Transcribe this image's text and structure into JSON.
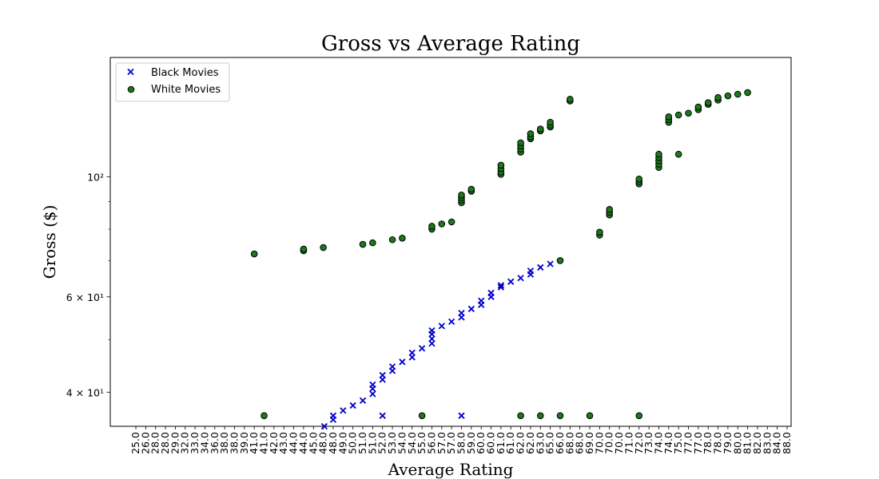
{
  "chart_data": {
    "type": "scatter",
    "title": "Gross vs Average Rating",
    "xlabel": "Average Rating",
    "ylabel": "Gross ($)",
    "yscale": "log",
    "ylim": [
      34.6,
      166
    ],
    "grid": false,
    "legend_position": "top-left",
    "x_tick_labels": [
      "25.0",
      "26.0",
      "28.0",
      "28.0",
      "29.0",
      "32.0",
      "33.0",
      "34.0",
      "36.0",
      "38.0",
      "38.0",
      "39.0",
      "41.0",
      "41.0",
      "42.0",
      "43.0",
      "44.0",
      "44.0",
      "45.0",
      "48.0",
      "48.0",
      "49.0",
      "50.0",
      "51.0",
      "51.0",
      "52.0",
      "53.0",
      "54.0",
      "54.0",
      "55.0",
      "56.0",
      "57.0",
      "57.0",
      "58.0",
      "59.0",
      "60.0",
      "60.0",
      "61.0",
      "61.0",
      "62.0",
      "62.0",
      "63.0",
      "65.0",
      "66.0",
      "68.0",
      "68.0",
      "69.0",
      "70.0",
      "70.0",
      "70.0",
      "71.0",
      "72.0",
      "73.0",
      "74.0",
      "74.0",
      "75.0",
      "77.0",
      "77.0",
      "78.0",
      "78.0",
      "79.0",
      "80.0",
      "81.0",
      "82.0",
      "83.0",
      "84.0",
      "88.0"
    ],
    "y_ticks": [
      {
        "value": 40,
        "label": "4 × 10¹"
      },
      {
        "value": 60,
        "label": "6 × 10¹"
      },
      {
        "value": 100,
        "label": "10²"
      }
    ],
    "y_minor_ticks": [
      50,
      70,
      80,
      90
    ],
    "series": [
      {
        "name": "Black Movies",
        "marker": "x",
        "color": "#0000cc",
        "points": [
          [
            19.1,
            34.6
          ],
          [
            20.0,
            36.2
          ],
          [
            20.0,
            35.6
          ],
          [
            21.0,
            37.0
          ],
          [
            22.0,
            37.8
          ],
          [
            23.0,
            38.6
          ],
          [
            24.0,
            39.7
          ],
          [
            24.0,
            40.6
          ],
          [
            24.0,
            41.3
          ],
          [
            25.0,
            42.2
          ],
          [
            25.0,
            43.0
          ],
          [
            26.0,
            43.8
          ],
          [
            26.0,
            44.6
          ],
          [
            27.0,
            45.5
          ],
          [
            28.0,
            46.4
          ],
          [
            28.0,
            47.3
          ],
          [
            29.0,
            48.2
          ],
          [
            30.0,
            49.2
          ],
          [
            30.0,
            50.2
          ],
          [
            30.0,
            51.2
          ],
          [
            30.0,
            52.0
          ],
          [
            31.0,
            53.0
          ],
          [
            32.0,
            54.0
          ],
          [
            33.0,
            55.0
          ],
          [
            33.0,
            56.0
          ],
          [
            34.0,
            57.0
          ],
          [
            35.0,
            58.0
          ],
          [
            35.0,
            59.0
          ],
          [
            36.0,
            60.0
          ],
          [
            36.0,
            61.0
          ],
          [
            37.0,
            62.5
          ],
          [
            37.0,
            63.0
          ],
          [
            38.0,
            64.0
          ],
          [
            39.0,
            65.0
          ],
          [
            40.0,
            66.0
          ],
          [
            40.0,
            67.0
          ],
          [
            41.0,
            68.0
          ],
          [
            42.0,
            69.0
          ],
          [
            25.0,
            36.2
          ],
          [
            33.0,
            36.2
          ]
        ]
      },
      {
        "name": "White Movies",
        "marker": "o",
        "color": "#1a7a1a",
        "points": [
          [
            12.0,
            72.0
          ],
          [
            13.0,
            36.2
          ],
          [
            17.0,
            73.0
          ],
          [
            17.0,
            73.5
          ],
          [
            19.0,
            74.0
          ],
          [
            23.0,
            75.0
          ],
          [
            24.0,
            75.5
          ],
          [
            26.0,
            76.5
          ],
          [
            27.0,
            77.0
          ],
          [
            30.0,
            80.0
          ],
          [
            30.0,
            81.0
          ],
          [
            31.0,
            81.8
          ],
          [
            32.0,
            82.5
          ],
          [
            29.0,
            36.2
          ],
          [
            33.0,
            89.5
          ],
          [
            33.0,
            90.5
          ],
          [
            33.0,
            91.5
          ],
          [
            33.0,
            92.5
          ],
          [
            34.0,
            94.0
          ],
          [
            34.0,
            94.8
          ],
          [
            37.0,
            101.0
          ],
          [
            37.0,
            102.0
          ],
          [
            37.0,
            103.5
          ],
          [
            37.0,
            105.0
          ],
          [
            39.0,
            111.0
          ],
          [
            39.0,
            112.5
          ],
          [
            39.0,
            114.0
          ],
          [
            39.0,
            115.5
          ],
          [
            40.0,
            117.5
          ],
          [
            40.0,
            118.5
          ],
          [
            40.0,
            120.0
          ],
          [
            41.0,
            121.5
          ],
          [
            41.0,
            122.5
          ],
          [
            42.0,
            123.5
          ],
          [
            42.0,
            124.5
          ],
          [
            42.0,
            126.0
          ],
          [
            44.0,
            138.0
          ],
          [
            44.0,
            139.0
          ],
          [
            39.0,
            36.2
          ],
          [
            41.0,
            36.2
          ],
          [
            43.0,
            36.2
          ],
          [
            43.0,
            70.0
          ],
          [
            46.0,
            36.2
          ],
          [
            47.0,
            78.0
          ],
          [
            47.0,
            79.0
          ],
          [
            48.0,
            85.0
          ],
          [
            48.0,
            86.0
          ],
          [
            48.0,
            87.0
          ],
          [
            51.0,
            97.0
          ],
          [
            51.0,
            98.0
          ],
          [
            51.0,
            99.0
          ],
          [
            53.0,
            104.0
          ],
          [
            53.0,
            105.5
          ],
          [
            53.0,
            107.0
          ],
          [
            53.0,
            108.5
          ],
          [
            53.0,
            110.0
          ],
          [
            55.0,
            110.0
          ],
          [
            51.0,
            36.2
          ],
          [
            54.0,
            126.0
          ],
          [
            54.0,
            127.5
          ],
          [
            54.0,
            129.0
          ],
          [
            55.0,
            130.0
          ],
          [
            56.0,
            131.0
          ],
          [
            57.0,
            133.0
          ],
          [
            57.0,
            134.5
          ],
          [
            58.0,
            136.0
          ],
          [
            58.0,
            137.0
          ],
          [
            59.0,
            138.5
          ],
          [
            59.0,
            140.0
          ],
          [
            60.0,
            141.0
          ],
          [
            61.0,
            142.0
          ],
          [
            62.0,
            143.0
          ]
        ]
      }
    ]
  }
}
